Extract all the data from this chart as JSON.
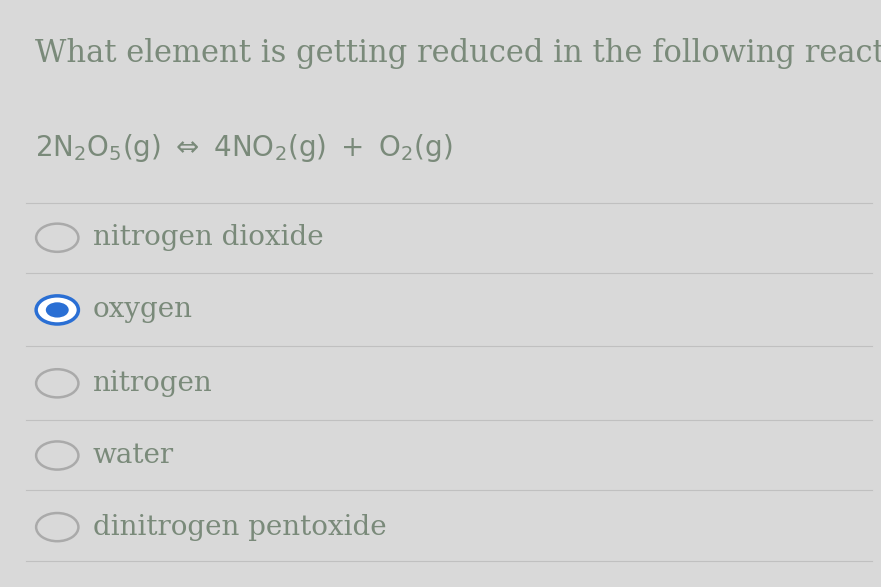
{
  "background_color": "#d9d9d9",
  "title": "What element is getting reduced in the following reaction?",
  "title_color": "#7a8a7a",
  "title_fontsize": 22,
  "equation_color": "#7a8a7a",
  "equation_fontsize": 20,
  "options": [
    {
      "label": "nitrogen dioxide",
      "selected": false
    },
    {
      "label": "oxygen",
      "selected": true
    },
    {
      "label": "nitrogen",
      "selected": false
    },
    {
      "label": "water",
      "selected": false
    },
    {
      "label": "dinitrogen pentoxide",
      "selected": false
    }
  ],
  "option_fontsize": 20,
  "option_color": "#7a8a7a",
  "radio_color_unselected": "#aaaaaa",
  "radio_color_selected_border": "#2a6fd4",
  "radio_color_selected_fill": "#2a6fd4",
  "divider_color": "#c0c0c0",
  "divider_linewidth": 0.8
}
